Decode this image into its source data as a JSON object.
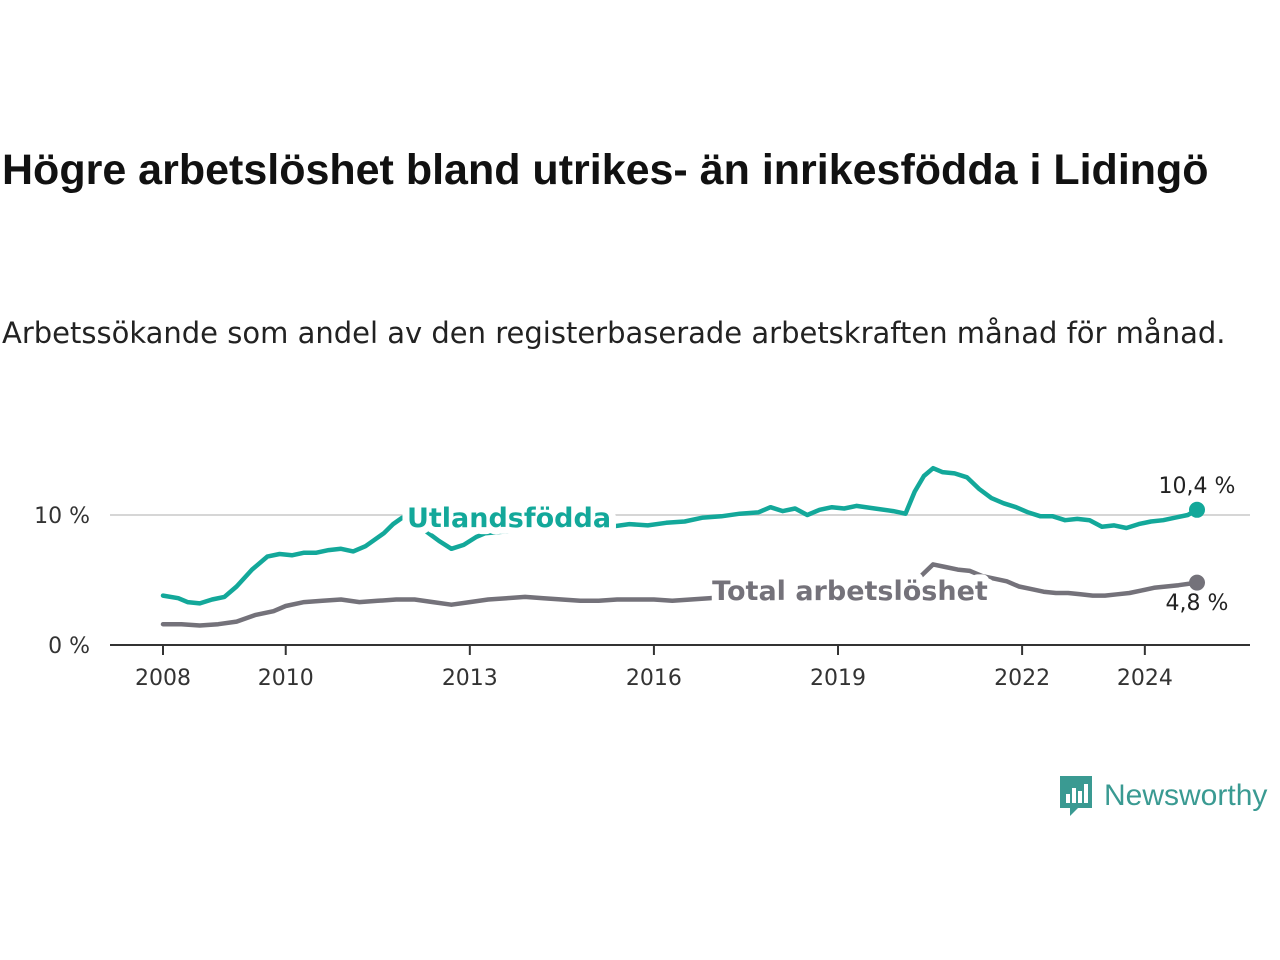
{
  "header": {
    "title": "Högre arbetslöshet bland utrikes- än inrikesfödda i Lidingö",
    "subtitle": "Arbetssökande som andel av den registerbaserade arbetskraften månad för månad."
  },
  "brand": {
    "name": "Newsworthy",
    "color": "#3a9a92"
  },
  "chart_data": {
    "type": "line",
    "title": "Högre arbetslöshet bland utrikes- än inrikesfödda i Lidingö",
    "xlabel": "",
    "ylabel": "",
    "ylim": [
      0,
      14
    ],
    "xlim": [
      2007.8,
      2025.6
    ],
    "y_ticks": [
      {
        "value": 0,
        "label": "0 %"
      },
      {
        "value": 10,
        "label": "10 %"
      }
    ],
    "x_ticks": [
      {
        "value": 2008,
        "label": "2008"
      },
      {
        "value": 2010,
        "label": "2010"
      },
      {
        "value": 2013,
        "label": "2013"
      },
      {
        "value": 2016,
        "label": "2016"
      },
      {
        "value": 2019,
        "label": "2019"
      },
      {
        "value": 2022,
        "label": "2022"
      },
      {
        "value": 2024,
        "label": "2024"
      }
    ],
    "grid": "horizontal",
    "series": [
      {
        "name": "Utlandsfödda",
        "color": "#13a89a",
        "end_label": "10,4 %",
        "end_value": 10.4,
        "points": [
          [
            2008.0,
            3.8
          ],
          [
            2008.25,
            3.6
          ],
          [
            2008.4,
            3.3
          ],
          [
            2008.6,
            3.2
          ],
          [
            2008.8,
            3.5
          ],
          [
            2009.0,
            3.7
          ],
          [
            2009.2,
            4.5
          ],
          [
            2009.45,
            5.8
          ],
          [
            2009.7,
            6.8
          ],
          [
            2009.9,
            7.0
          ],
          [
            2010.1,
            6.9
          ],
          [
            2010.3,
            7.1
          ],
          [
            2010.5,
            7.1
          ],
          [
            2010.7,
            7.3
          ],
          [
            2010.9,
            7.4
          ],
          [
            2011.1,
            7.2
          ],
          [
            2011.3,
            7.6
          ],
          [
            2011.45,
            8.1
          ],
          [
            2011.6,
            8.6
          ],
          [
            2011.75,
            9.3
          ],
          [
            2011.9,
            9.8
          ],
          [
            2012.1,
            9.6
          ],
          [
            2012.3,
            8.7
          ],
          [
            2012.5,
            8.0
          ],
          [
            2012.7,
            7.4
          ],
          [
            2012.9,
            7.7
          ],
          [
            2013.1,
            8.3
          ],
          [
            2013.25,
            8.6
          ],
          [
            2013.5,
            8.7
          ],
          [
            2013.8,
            8.8
          ],
          [
            2014.2,
            8.9
          ],
          [
            2014.6,
            9.0
          ],
          [
            2015.0,
            9.1
          ],
          [
            2015.3,
            9.1
          ],
          [
            2015.6,
            9.3
          ],
          [
            2015.9,
            9.2
          ],
          [
            2016.2,
            9.4
          ],
          [
            2016.5,
            9.5
          ],
          [
            2016.8,
            9.8
          ],
          [
            2017.1,
            9.9
          ],
          [
            2017.4,
            10.1
          ],
          [
            2017.7,
            10.2
          ],
          [
            2017.9,
            10.6
          ],
          [
            2018.1,
            10.3
          ],
          [
            2018.3,
            10.5
          ],
          [
            2018.5,
            10.0
          ],
          [
            2018.7,
            10.4
          ],
          [
            2018.9,
            10.6
          ],
          [
            2019.1,
            10.5
          ],
          [
            2019.3,
            10.7
          ],
          [
            2019.6,
            10.5
          ],
          [
            2019.9,
            10.3
          ],
          [
            2020.1,
            10.1
          ],
          [
            2020.25,
            11.8
          ],
          [
            2020.4,
            13.0
          ],
          [
            2020.55,
            13.6
          ],
          [
            2020.7,
            13.3
          ],
          [
            2020.9,
            13.2
          ],
          [
            2021.1,
            12.9
          ],
          [
            2021.3,
            12.0
          ],
          [
            2021.5,
            11.3
          ],
          [
            2021.7,
            10.9
          ],
          [
            2021.9,
            10.6
          ],
          [
            2022.1,
            10.2
          ],
          [
            2022.3,
            9.9
          ],
          [
            2022.5,
            9.9
          ],
          [
            2022.7,
            9.6
          ],
          [
            2022.9,
            9.7
          ],
          [
            2023.1,
            9.6
          ],
          [
            2023.3,
            9.1
          ],
          [
            2023.5,
            9.2
          ],
          [
            2023.7,
            9.0
          ],
          [
            2023.9,
            9.3
          ],
          [
            2024.1,
            9.5
          ],
          [
            2024.3,
            9.6
          ],
          [
            2024.5,
            9.8
          ],
          [
            2024.7,
            10.0
          ],
          [
            2024.85,
            10.4
          ]
        ]
      },
      {
        "name": "Total arbetslöshet",
        "color": "#74727a",
        "end_label": "4,8 %",
        "end_value": 4.8,
        "points": [
          [
            2008.0,
            1.6
          ],
          [
            2008.3,
            1.6
          ],
          [
            2008.6,
            1.5
          ],
          [
            2008.9,
            1.6
          ],
          [
            2009.2,
            1.8
          ],
          [
            2009.5,
            2.3
          ],
          [
            2009.8,
            2.6
          ],
          [
            2010.0,
            3.0
          ],
          [
            2010.3,
            3.3
          ],
          [
            2010.6,
            3.4
          ],
          [
            2010.9,
            3.5
          ],
          [
            2011.2,
            3.3
          ],
          [
            2011.5,
            3.4
          ],
          [
            2011.8,
            3.5
          ],
          [
            2012.1,
            3.5
          ],
          [
            2012.4,
            3.3
          ],
          [
            2012.7,
            3.1
          ],
          [
            2013.0,
            3.3
          ],
          [
            2013.3,
            3.5
          ],
          [
            2013.6,
            3.6
          ],
          [
            2013.9,
            3.7
          ],
          [
            2014.2,
            3.6
          ],
          [
            2014.5,
            3.5
          ],
          [
            2014.8,
            3.4
          ],
          [
            2015.1,
            3.4
          ],
          [
            2015.4,
            3.5
          ],
          [
            2015.7,
            3.5
          ],
          [
            2016.0,
            3.5
          ],
          [
            2016.3,
            3.4
          ],
          [
            2016.6,
            3.5
          ],
          [
            2016.9,
            3.6
          ],
          [
            2017.2,
            3.7
          ],
          [
            2017.5,
            3.7
          ],
          [
            2017.8,
            3.8
          ],
          [
            2018.1,
            3.8
          ],
          [
            2018.4,
            3.9
          ],
          [
            2018.7,
            3.8
          ],
          [
            2019.0,
            3.9
          ],
          [
            2019.3,
            3.9
          ],
          [
            2019.6,
            3.8
          ],
          [
            2019.9,
            3.9
          ],
          [
            2020.15,
            4.2
          ],
          [
            2020.35,
            5.3
          ],
          [
            2020.55,
            6.2
          ],
          [
            2020.75,
            6.0
          ],
          [
            2020.95,
            5.8
          ],
          [
            2021.15,
            5.7
          ],
          [
            2021.35,
            5.3
          ],
          [
            2021.55,
            5.1
          ],
          [
            2021.75,
            4.9
          ],
          [
            2021.95,
            4.5
          ],
          [
            2022.15,
            4.3
          ],
          [
            2022.35,
            4.1
          ],
          [
            2022.55,
            4.0
          ],
          [
            2022.75,
            4.0
          ],
          [
            2022.95,
            3.9
          ],
          [
            2023.15,
            3.8
          ],
          [
            2023.35,
            3.8
          ],
          [
            2023.55,
            3.9
          ],
          [
            2023.75,
            4.0
          ],
          [
            2023.95,
            4.2
          ],
          [
            2024.15,
            4.4
          ],
          [
            2024.35,
            4.5
          ],
          [
            2024.55,
            4.6
          ],
          [
            2024.85,
            4.8
          ]
        ]
      }
    ]
  }
}
